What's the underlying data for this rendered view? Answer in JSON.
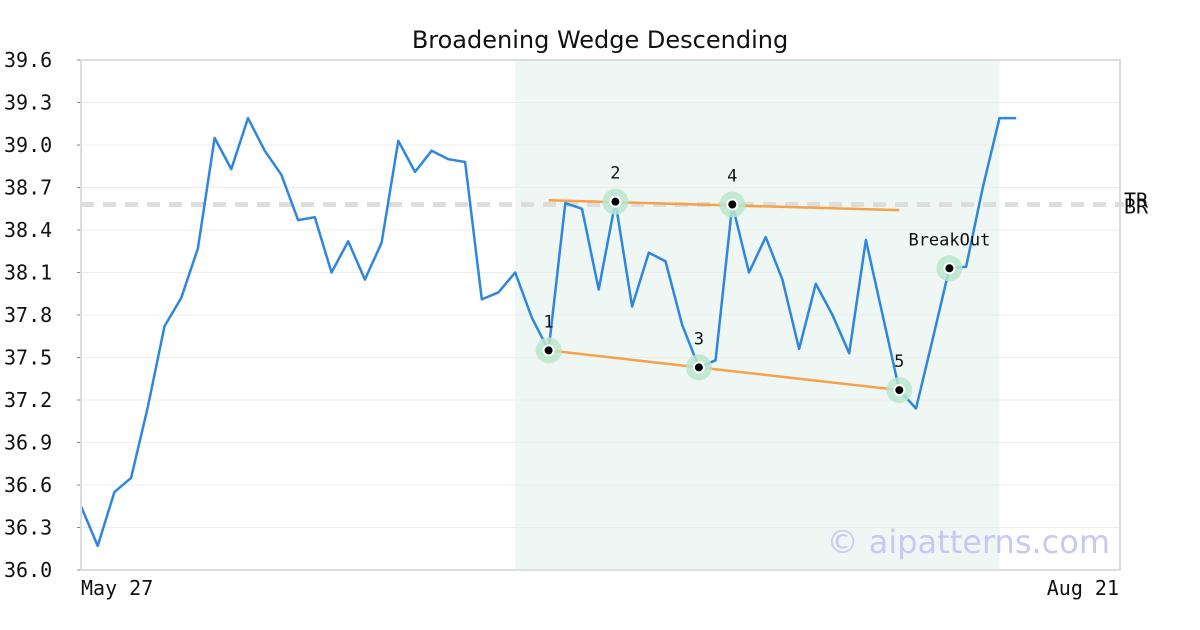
{
  "chart_data": {
    "type": "line",
    "title": "Broadening Wedge Descending",
    "ylim": [
      36.0,
      39.6
    ],
    "yticks": [
      "36.0",
      "36.3",
      "36.6",
      "36.9",
      "37.2",
      "37.5",
      "37.8",
      "38.1",
      "38.4",
      "38.7",
      "39.0",
      "39.3",
      "39.6"
    ],
    "xtick_labels": [
      "May 27",
      "Aug 21"
    ],
    "grid": true,
    "series": [
      {
        "values": [
          36.45,
          36.17,
          36.55,
          36.65,
          37.15,
          37.72,
          37.92,
          38.27,
          39.05,
          38.83,
          39.19,
          38.96,
          38.79,
          38.47,
          38.49,
          38.1,
          38.32,
          38.05,
          38.31,
          39.03,
          38.81,
          38.96,
          38.9,
          38.88,
          37.91,
          37.96,
          38.1,
          37.78,
          37.55,
          38.59,
          38.55,
          37.98,
          38.6,
          37.86,
          38.24,
          38.18,
          37.73,
          37.43,
          37.48,
          38.58,
          38.1,
          38.35,
          38.05,
          37.56,
          38.02,
          37.8,
          37.53,
          38.33,
          37.8,
          37.27,
          37.14,
          37.63,
          38.13,
          38.14,
          38.7,
          39.19,
          39.19
        ],
        "color": "#2e86de"
      }
    ],
    "highlight_range": {
      "from_index": 26,
      "to_index": 55,
      "color": "#eef7f3"
    },
    "reference_line": {
      "value": 38.58,
      "labels": [
        "TR",
        "BR"
      ],
      "color": "#dddddd"
    },
    "trendlines": [
      {
        "from": {
          "index": 28,
          "value": 38.61
        },
        "to": {
          "index": 49,
          "value": 38.54
        },
        "color": "#f7a14a"
      },
      {
        "from": {
          "index": 28,
          "value": 37.55
        },
        "to": {
          "index": 49,
          "value": 37.27
        },
        "color": "#f7a14a"
      }
    ],
    "pattern_points": [
      {
        "label": "1",
        "index": 28,
        "value": 37.55
      },
      {
        "label": "2",
        "index": 32,
        "value": 38.6
      },
      {
        "label": "3",
        "index": 37,
        "value": 37.43
      },
      {
        "label": "4",
        "index": 39,
        "value": 38.58
      },
      {
        "label": "5",
        "index": 49,
        "value": 37.27
      },
      {
        "label": "BreakOut",
        "index": 52,
        "value": 38.13
      }
    ],
    "watermark": "© aipatterns.com"
  }
}
